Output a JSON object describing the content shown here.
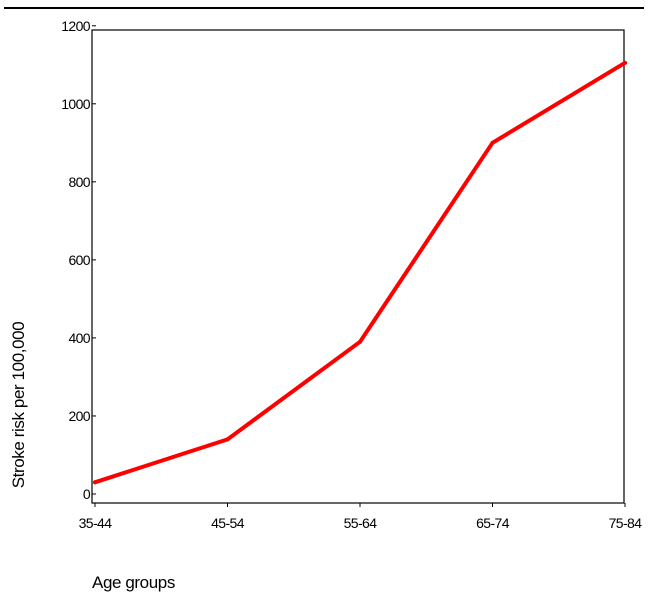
{
  "chart_data": {
    "type": "line",
    "title": "",
    "xlabel": "Age groups",
    "ylabel": "Stroke risk per 100,000",
    "categories": [
      "35-44",
      "45-54",
      "55-64",
      "65-74",
      "75-84"
    ],
    "series": [
      {
        "values": [
          30,
          140,
          390,
          900,
          1105
        ],
        "color": "#ff0000"
      }
    ],
    "ylim": [
      0,
      1200
    ],
    "yticks": [
      0,
      200,
      400,
      600,
      800,
      1000,
      1200
    ],
    "grid": false,
    "legend": "none"
  }
}
